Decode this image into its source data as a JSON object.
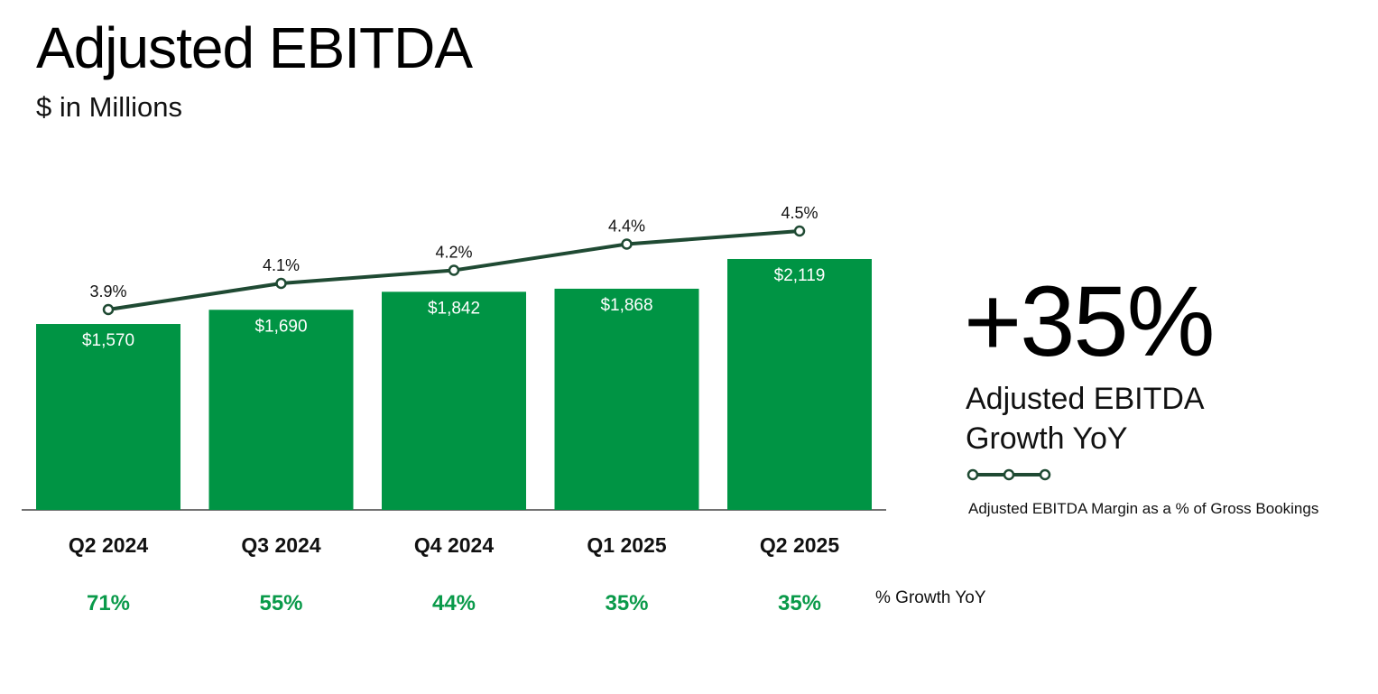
{
  "header": {
    "title": "Adjusted EBITDA",
    "subtitle": "$ in Millions"
  },
  "summary": {
    "big_value": "+35%",
    "caption_line1": "Adjusted EBITDA",
    "caption_line2": "Growth YoY",
    "legend_label": "Adjusted EBITDA Margin as a % of Gross Bookings",
    "growth_row_label": "% Growth YoY"
  },
  "colors": {
    "bar": "#009444",
    "line": "#1f4a33",
    "growth_text": "#0a9a4a"
  },
  "chart_data": {
    "type": "bar",
    "categories": [
      "Q2 2024",
      "Q3 2024",
      "Q4 2024",
      "Q1 2025",
      "Q2 2025"
    ],
    "series": [
      {
        "values": [
          1570,
          1690,
          1842,
          1868,
          2119
        ],
        "value_labels": [
          "$1,570",
          "$1,690",
          "$1,842",
          "$1,868",
          "$2,119"
        ]
      },
      {
        "name": "Adjusted EBITDA Margin as a % of Gross Bookings",
        "type": "line",
        "values": [
          3.9,
          4.1,
          4.2,
          4.4,
          4.5
        ],
        "value_labels": [
          "3.9%",
          "4.1%",
          "4.2%",
          "4.4%",
          "4.5%"
        ]
      }
    ],
    "growth_yoy": [
      "71%",
      "55%",
      "44%",
      "35%",
      "35%"
    ],
    "title": "Adjusted EBITDA",
    "ylabel": "$ in Millions",
    "grid": false
  }
}
